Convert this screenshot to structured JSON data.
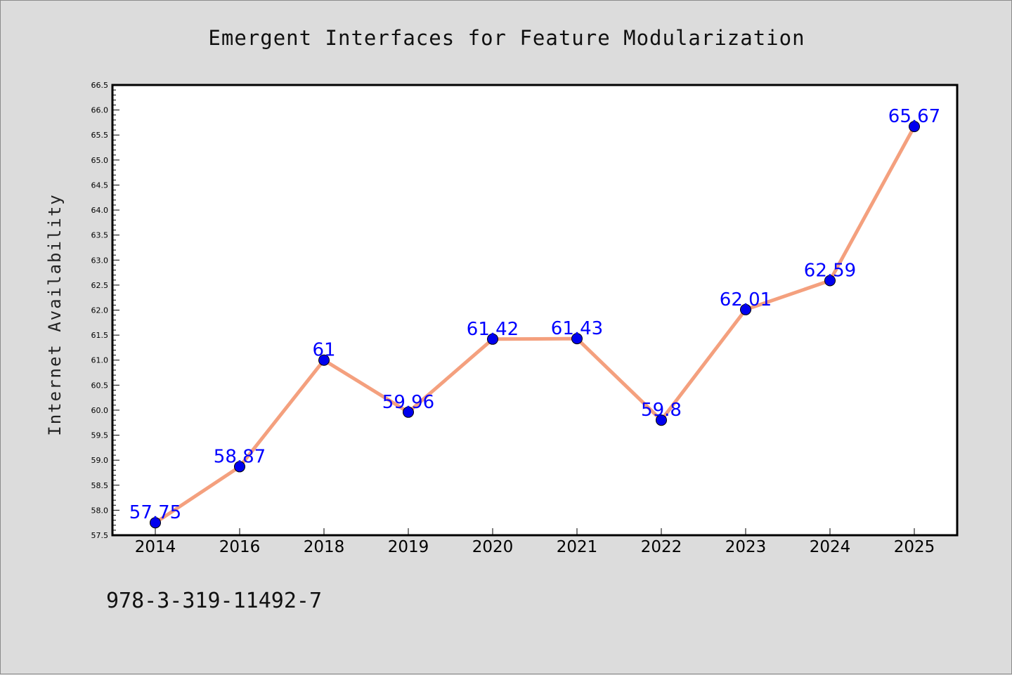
{
  "chart_data": {
    "type": "line",
    "title": "Emergent Interfaces for Feature Modularization",
    "xlabel": "",
    "ylabel": "Internet Availability",
    "categories": [
      "2014",
      "2016",
      "2018",
      "2019",
      "2020",
      "2021",
      "2022",
      "2023",
      "2024",
      "2025"
    ],
    "series": [
      {
        "values": [
          57.75,
          58.87,
          61,
          59.96,
          61.42,
          61.43,
          59.8,
          62.01,
          62.59,
          65.67
        ],
        "data_labels": [
          "57.75",
          "58.87",
          "61",
          "59.96",
          "61.42",
          "61.43",
          "59.8",
          "62.01",
          "62.59",
          "65.67"
        ],
        "line_color": "#f4a07e",
        "marker_color": "#0000ee"
      }
    ],
    "ylim": [
      57.5,
      66.5
    ],
    "yticks": [
      "57.5",
      "58.0",
      "58.5",
      "59.0",
      "59.5",
      "60.0",
      "60.5",
      "61.0",
      "61.5",
      "62.0",
      "62.5",
      "63.0",
      "63.5",
      "64.0",
      "64.5",
      "65.0",
      "65.5",
      "66.0",
      "66.5"
    ],
    "grid": false,
    "legend": "none"
  },
  "footer": {
    "text": "978-3-319-11492-7"
  },
  "colors": {
    "background": "#dcdcdc",
    "plot_background": "#ffffff",
    "label_color": "#0000ff"
  }
}
